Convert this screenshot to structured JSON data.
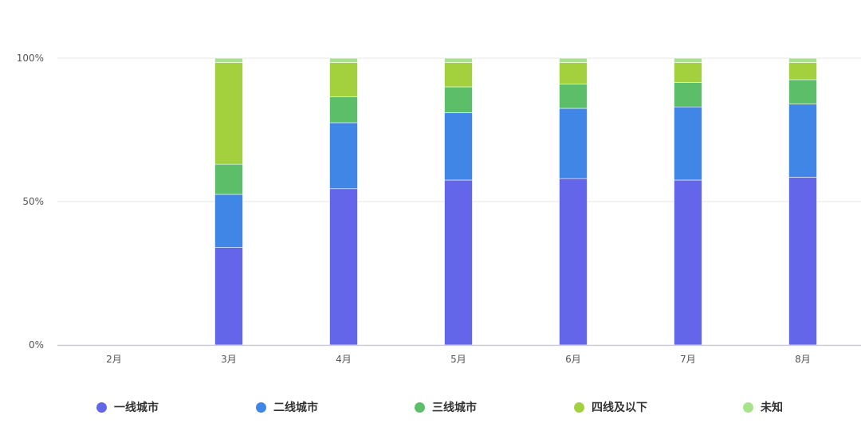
{
  "chart_data": {
    "type": "bar",
    "stacked": true,
    "percent": true,
    "categories": [
      "2月",
      "3月",
      "4月",
      "5月",
      "6月",
      "7月",
      "8月"
    ],
    "y_ticks": [
      "0%",
      "50%",
      "100%"
    ],
    "ylim": [
      0,
      100
    ],
    "grid": true,
    "legend_position": "bottom",
    "series": [
      {
        "name": "一线城市",
        "color": "#6366e8",
        "values": [
          0,
          34,
          54.5,
          57.5,
          58,
          57.5,
          58.5
        ]
      },
      {
        "name": "二线城市",
        "color": "#3f86e6",
        "values": [
          0,
          18.5,
          23,
          23.5,
          24.5,
          25.5,
          25.5
        ]
      },
      {
        "name": "三线城市",
        "color": "#5dbe6a",
        "values": [
          0,
          10.5,
          9,
          9,
          8.5,
          8.5,
          8.5
        ]
      },
      {
        "name": "四线及以下",
        "color": "#a3d13e",
        "values": [
          0,
          35.5,
          12,
          8.5,
          7.5,
          7,
          6
        ]
      },
      {
        "name": "未知",
        "color": "#a7e38b",
        "values": [
          0,
          1.5,
          1.5,
          1.5,
          1.5,
          1.5,
          1.5
        ]
      }
    ]
  }
}
